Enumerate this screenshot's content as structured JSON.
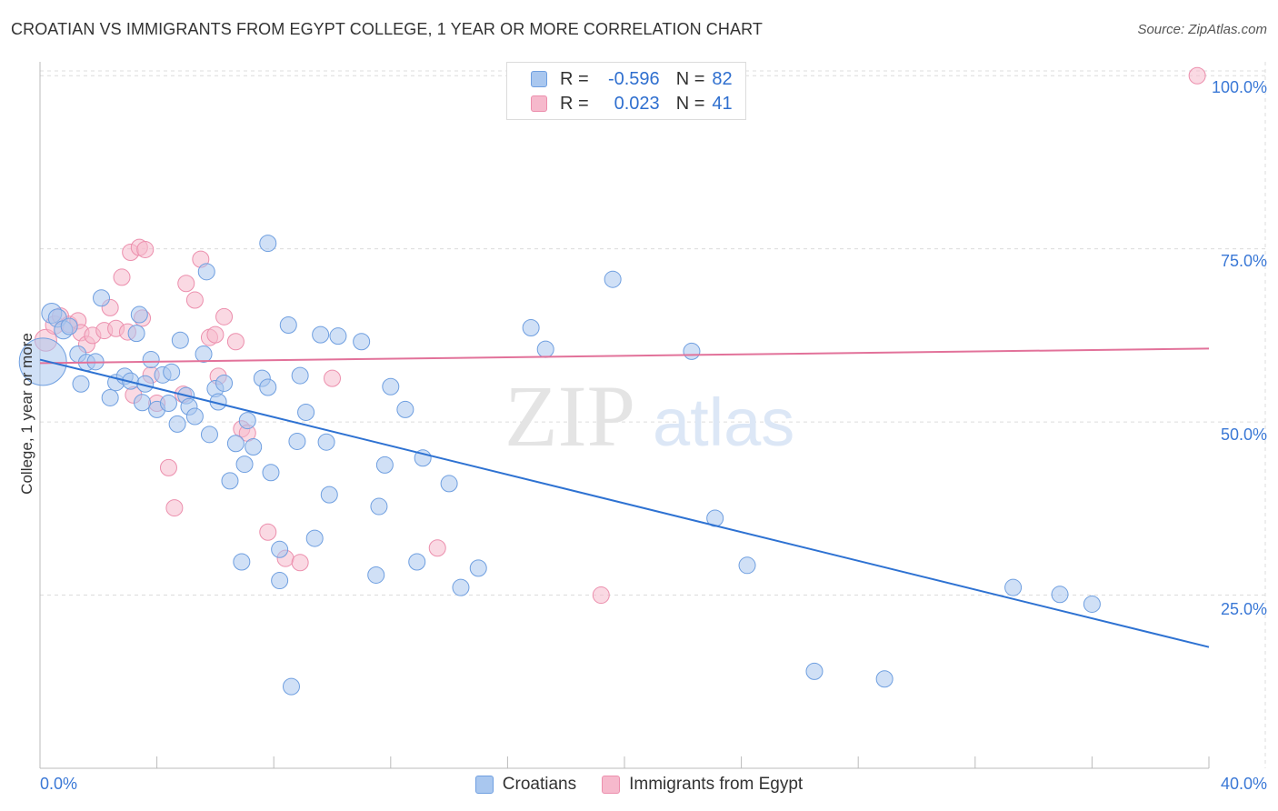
{
  "title": "CROATIAN VS IMMIGRANTS FROM EGYPT COLLEGE, 1 YEAR OR MORE CORRELATION CHART",
  "source": "Source: ZipAtlas.com",
  "watermark": {
    "zip": "ZIP",
    "atlas": "atlas"
  },
  "legend": {
    "series1": {
      "r_label": "R =",
      "r_value": "-0.596",
      "n_label": "N =",
      "n_value": "82"
    },
    "series2": {
      "r_label": "R =",
      "r_value": "0.023",
      "n_label": "N =",
      "n_value": "41"
    }
  },
  "bottom_legend": {
    "series1": "Croatians",
    "series2": "Immigrants from Egypt"
  },
  "colors": {
    "blue_fill": "#a9c7ef",
    "blue_stroke": "#6f9fe0",
    "blue_line": "#2e72d2",
    "pink_fill": "#f6b9cc",
    "pink_stroke": "#ec8fad",
    "pink_line": "#e2729a",
    "tick_text": "#3a78d6",
    "grid": "#dcdcdc"
  },
  "chart_data": {
    "type": "scatter",
    "title": "CROATIAN VS IMMIGRANTS FROM EGYPT COLLEGE, 1 YEAR OR MORE CORRELATION CHART",
    "xlabel": "",
    "ylabel": "College, 1 year or more",
    "xlim": [
      0,
      40
    ],
    "ylim": [
      0,
      102
    ],
    "x_tick_labels": [
      "0.0%",
      "40.0%"
    ],
    "y_ticks": [
      25,
      50,
      75,
      100
    ],
    "y_tick_labels": [
      "25.0%",
      "50.0%",
      "75.0%",
      "100.0%"
    ],
    "grid": true,
    "series": [
      {
        "name": "Croatians",
        "r": -0.596,
        "n": 82,
        "trend": {
          "x": [
            0,
            40
          ],
          "y": [
            59.0,
            17.5
          ]
        },
        "points": [
          [
            0.1,
            58.7,
            26
          ],
          [
            0.4,
            65.7,
            11
          ],
          [
            0.6,
            65.0,
            10
          ],
          [
            0.8,
            63.3,
            10
          ],
          [
            1.0,
            63.8,
            9
          ],
          [
            1.3,
            59.8,
            9
          ],
          [
            1.4,
            55.5,
            9
          ],
          [
            1.6,
            58.6,
            9
          ],
          [
            1.9,
            58.7,
            9
          ],
          [
            2.1,
            67.9,
            9
          ],
          [
            2.4,
            53.5,
            9
          ],
          [
            2.6,
            55.7,
            9
          ],
          [
            2.9,
            56.6,
            9
          ],
          [
            3.1,
            55.9,
            9
          ],
          [
            3.3,
            62.8,
            9
          ],
          [
            3.4,
            65.5,
            9
          ],
          [
            3.5,
            52.8,
            9
          ],
          [
            3.6,
            55.5,
            9
          ],
          [
            3.8,
            59.0,
            9
          ],
          [
            4.0,
            51.8,
            9
          ],
          [
            4.2,
            56.8,
            9
          ],
          [
            4.4,
            52.7,
            9
          ],
          [
            4.5,
            57.2,
            9
          ],
          [
            4.7,
            49.7,
            9
          ],
          [
            4.8,
            61.8,
            9
          ],
          [
            5.0,
            53.8,
            9
          ],
          [
            5.1,
            52.2,
            9
          ],
          [
            5.3,
            50.8,
            9
          ],
          [
            5.6,
            59.8,
            9
          ],
          [
            5.7,
            71.7,
            9
          ],
          [
            5.8,
            48.2,
            9
          ],
          [
            6.0,
            54.8,
            9
          ],
          [
            6.1,
            52.9,
            9
          ],
          [
            6.3,
            55.6,
            9
          ],
          [
            6.5,
            41.5,
            9
          ],
          [
            6.7,
            46.9,
            9
          ],
          [
            6.9,
            29.8,
            9
          ],
          [
            7.0,
            43.9,
            9
          ],
          [
            7.1,
            50.2,
            9
          ],
          [
            7.3,
            46.4,
            9
          ],
          [
            7.6,
            56.3,
            9
          ],
          [
            7.8,
            55.0,
            9
          ],
          [
            7.9,
            42.7,
            9
          ],
          [
            7.8,
            75.8,
            9
          ],
          [
            8.2,
            31.6,
            9
          ],
          [
            8.2,
            27.1,
            9
          ],
          [
            8.5,
            64.0,
            9
          ],
          [
            8.6,
            11.8,
            9
          ],
          [
            8.8,
            47.2,
            9
          ],
          [
            8.9,
            56.7,
            9
          ],
          [
            9.1,
            51.4,
            9
          ],
          [
            9.4,
            33.2,
            9
          ],
          [
            9.6,
            62.6,
            9
          ],
          [
            9.8,
            47.1,
            9
          ],
          [
            9.9,
            39.5,
            9
          ],
          [
            10.2,
            62.4,
            9
          ],
          [
            11.0,
            61.6,
            9
          ],
          [
            11.5,
            27.9,
            9
          ],
          [
            11.6,
            37.8,
            9
          ],
          [
            11.8,
            43.8,
            9
          ],
          [
            12.0,
            55.1,
            9
          ],
          [
            12.5,
            51.8,
            9
          ],
          [
            12.9,
            29.8,
            9
          ],
          [
            13.1,
            44.8,
            9
          ],
          [
            14.0,
            41.1,
            9
          ],
          [
            14.4,
            26.1,
            9
          ],
          [
            15.0,
            28.9,
            9
          ],
          [
            16.8,
            63.6,
            9
          ],
          [
            17.3,
            60.5,
            9
          ],
          [
            19.6,
            70.6,
            9
          ],
          [
            22.3,
            60.2,
            9
          ],
          [
            23.1,
            36.1,
            9
          ],
          [
            24.2,
            29.3,
            9
          ],
          [
            26.5,
            14.0,
            9
          ],
          [
            28.9,
            12.9,
            9
          ],
          [
            33.3,
            26.1,
            9
          ],
          [
            34.9,
            25.1,
            9
          ],
          [
            36.0,
            23.7,
            9
          ]
        ]
      },
      {
        "name": "Immigrants from Egypt",
        "r": 0.023,
        "n": 41,
        "trend": {
          "x": [
            0,
            40
          ],
          "y": [
            58.5,
            60.6
          ]
        },
        "points": [
          [
            0.2,
            61.8,
            12
          ],
          [
            0.5,
            64.0,
            10
          ],
          [
            0.7,
            65.3,
            9
          ],
          [
            1.0,
            64.1,
            9
          ],
          [
            1.3,
            64.6,
            9
          ],
          [
            1.4,
            62.9,
            9
          ],
          [
            1.6,
            61.2,
            9
          ],
          [
            1.8,
            62.5,
            9
          ],
          [
            2.2,
            63.2,
            9
          ],
          [
            2.4,
            66.5,
            9
          ],
          [
            2.6,
            63.5,
            9
          ],
          [
            2.8,
            70.9,
            9
          ],
          [
            3.0,
            63.0,
            9
          ],
          [
            3.1,
            74.5,
            9
          ],
          [
            3.2,
            53.9,
            9
          ],
          [
            3.4,
            75.2,
            9
          ],
          [
            3.5,
            65.0,
            9
          ],
          [
            3.6,
            74.9,
            9
          ],
          [
            3.8,
            56.8,
            9
          ],
          [
            4.0,
            52.7,
            9
          ],
          [
            4.4,
            43.4,
            9
          ],
          [
            4.6,
            37.6,
            9
          ],
          [
            4.9,
            54.0,
            9
          ],
          [
            5.0,
            70.0,
            9
          ],
          [
            5.3,
            67.6,
            9
          ],
          [
            5.5,
            73.5,
            9
          ],
          [
            5.8,
            62.2,
            9
          ],
          [
            6.0,
            62.6,
            9
          ],
          [
            6.1,
            56.6,
            9
          ],
          [
            6.3,
            65.2,
            9
          ],
          [
            6.7,
            61.6,
            9
          ],
          [
            6.9,
            49.0,
            9
          ],
          [
            7.1,
            48.4,
            9
          ],
          [
            7.8,
            34.1,
            9
          ],
          [
            8.4,
            30.3,
            9
          ],
          [
            8.9,
            29.7,
            9
          ],
          [
            10.0,
            56.3,
            9
          ],
          [
            13.6,
            31.8,
            9
          ],
          [
            19.2,
            25.0,
            9
          ],
          [
            39.6,
            100.0,
            9
          ]
        ]
      }
    ]
  }
}
